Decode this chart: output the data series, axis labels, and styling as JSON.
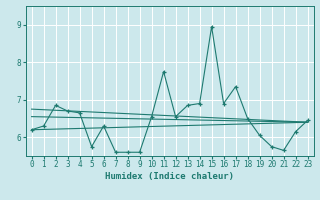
{
  "xlabel": "Humidex (Indice chaleur)",
  "xlim": [
    -0.5,
    23.5
  ],
  "ylim": [
    5.5,
    9.5
  ],
  "yticks": [
    6,
    7,
    8,
    9
  ],
  "xticks": [
    0,
    1,
    2,
    3,
    4,
    5,
    6,
    7,
    8,
    9,
    10,
    11,
    12,
    13,
    14,
    15,
    16,
    17,
    18,
    19,
    20,
    21,
    22,
    23
  ],
  "bg_color": "#cce8ec",
  "line_color": "#1e7a70",
  "grid_color": "#ffffff",
  "main_line": {
    "x": [
      0,
      1,
      2,
      3,
      4,
      5,
      6,
      7,
      8,
      9,
      10,
      11,
      12,
      13,
      14,
      15,
      16,
      17,
      18,
      19,
      20,
      21,
      22,
      23
    ],
    "y": [
      6.2,
      6.3,
      6.85,
      6.7,
      6.65,
      5.75,
      6.3,
      5.6,
      5.6,
      5.6,
      6.55,
      7.75,
      6.55,
      6.85,
      6.9,
      8.95,
      6.9,
      7.35,
      6.5,
      6.05,
      5.75,
      5.65,
      6.15,
      6.45
    ]
  },
  "straight_lines": [
    {
      "x0": 0,
      "y0": 6.75,
      "x1": 23,
      "y1": 6.4
    },
    {
      "x0": 0,
      "y0": 6.55,
      "x1": 23,
      "y1": 6.4
    },
    {
      "x0": 0,
      "y0": 6.2,
      "x1": 23,
      "y1": 6.4
    }
  ]
}
